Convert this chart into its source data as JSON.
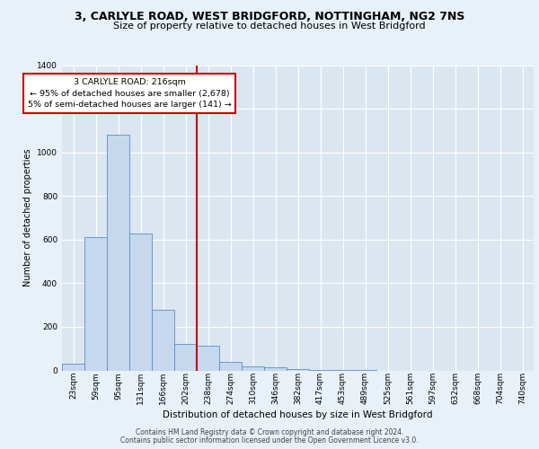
{
  "title_line1": "3, CARLYLE ROAD, WEST BRIDGFORD, NOTTINGHAM, NG2 7NS",
  "title_line2": "Size of property relative to detached houses in West Bridgford",
  "xlabel": "Distribution of detached houses by size in West Bridgford",
  "ylabel": "Number of detached properties",
  "footer1": "Contains HM Land Registry data © Crown copyright and database right 2024.",
  "footer2": "Contains public sector information licensed under the Open Government Licence v3.0.",
  "bar_labels": [
    "23sqm",
    "59sqm",
    "95sqm",
    "131sqm",
    "166sqm",
    "202sqm",
    "238sqm",
    "274sqm",
    "310sqm",
    "346sqm",
    "382sqm",
    "417sqm",
    "453sqm",
    "489sqm",
    "525sqm",
    "561sqm",
    "597sqm",
    "632sqm",
    "668sqm",
    "704sqm",
    "740sqm"
  ],
  "bar_values": [
    30,
    610,
    1080,
    630,
    280,
    120,
    115,
    40,
    20,
    15,
    5,
    3,
    2,
    1,
    0,
    0,
    0,
    0,
    0,
    0,
    0
  ],
  "bar_color": "#c5d8ee",
  "bar_edge_color": "#5b8ec4",
  "bg_color": "#e8f0f8",
  "plot_bg_color": "#dce6f1",
  "grid_color": "#ffffff",
  "vline_color": "#cc0000",
  "vline_x_index": 5.5,
  "annotation_text": "3 CARLYLE ROAD: 216sqm\n← 95% of detached houses are smaller (2,678)\n5% of semi-detached houses are larger (141) →",
  "annotation_box_color": "#cc0000",
  "ylim": [
    0,
    1400
  ],
  "yticks": [
    0,
    200,
    400,
    600,
    800,
    1000,
    1200,
    1400
  ],
  "title1_fontsize": 9,
  "title2_fontsize": 8,
  "ylabel_fontsize": 7,
  "xlabel_fontsize": 7.5,
  "tick_fontsize": 6.5,
  "footer_fontsize": 5.5
}
